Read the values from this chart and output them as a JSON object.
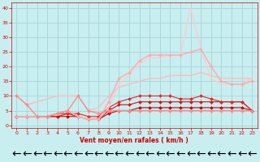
{
  "title": "",
  "xlabel": "Vent moyen/en rafales ( km/h )",
  "ylabel": "",
  "bg_color": "#c8eef0",
  "grid_color": "#aad8dc",
  "x_ticks": [
    0,
    1,
    2,
    3,
    4,
    5,
    6,
    7,
    8,
    9,
    10,
    11,
    12,
    13,
    14,
    15,
    16,
    17,
    18,
    19,
    20,
    21,
    22,
    23
  ],
  "ylim": [
    -1,
    42
  ],
  "xlim": [
    -0.5,
    23.5
  ],
  "yticks": [
    0,
    5,
    10,
    15,
    20,
    25,
    30,
    35,
    40
  ],
  "series": [
    {
      "x": [
        0,
        1,
        2,
        3,
        4,
        5,
        6,
        7,
        8,
        9,
        10,
        11,
        12,
        13,
        14,
        15,
        16,
        17,
        18,
        19,
        20,
        21,
        22,
        23
      ],
      "y": [
        3,
        3,
        3,
        3,
        3,
        3,
        3,
        2,
        2,
        4,
        5,
        5,
        6,
        6,
        6,
        6,
        6,
        6,
        6,
        6,
        6,
        6,
        6,
        5
      ],
      "color": "#cc0000",
      "lw": 0.8,
      "marker": "D",
      "ms": 2.0
    },
    {
      "x": [
        0,
        1,
        2,
        3,
        4,
        5,
        6,
        7,
        8,
        9,
        10,
        11,
        12,
        13,
        14,
        15,
        16,
        17,
        18,
        19,
        20,
        21,
        22,
        23
      ],
      "y": [
        3,
        3,
        3,
        3,
        3,
        4,
        3,
        2,
        2,
        5,
        7,
        7,
        8,
        8,
        8,
        8,
        8,
        8,
        8,
        8,
        8,
        8,
        8,
        5
      ],
      "color": "#dd1111",
      "lw": 0.8,
      "marker": "D",
      "ms": 2.0
    },
    {
      "x": [
        0,
        1,
        2,
        3,
        4,
        5,
        6,
        7,
        8,
        9,
        10,
        11,
        12,
        13,
        14,
        15,
        16,
        17,
        18,
        19,
        20,
        21,
        22,
        23
      ],
      "y": [
        3,
        3,
        3,
        3,
        4,
        4,
        4,
        3,
        3,
        6,
        8,
        9,
        10,
        10,
        10,
        10,
        9,
        9,
        10,
        9,
        8,
        8,
        8,
        5
      ],
      "color": "#ee2222",
      "lw": 0.8,
      "marker": "D",
      "ms": 2.0
    },
    {
      "x": [
        0,
        1,
        2,
        3,
        4,
        5,
        6,
        7,
        8,
        9,
        10,
        11,
        12,
        13,
        14,
        15,
        16,
        17,
        18,
        19,
        20,
        21,
        22,
        23
      ],
      "y": [
        10,
        7,
        8,
        9,
        10,
        10,
        10,
        5,
        6,
        10,
        13,
        14,
        15,
        16,
        16,
        17,
        17,
        17,
        18,
        17,
        16,
        16,
        16,
        16
      ],
      "color": "#ffbbbb",
      "lw": 1.0,
      "marker": null,
      "ms": 0
    },
    {
      "x": [
        0,
        1,
        2,
        3,
        4,
        5,
        6,
        7,
        8,
        9,
        10,
        11,
        12,
        13,
        14,
        15,
        16,
        17,
        18,
        19,
        20,
        21,
        22,
        23
      ],
      "y": [
        3,
        3,
        3,
        3,
        4,
        5,
        3,
        2,
        2,
        6,
        14,
        17,
        21,
        23,
        23,
        24,
        24,
        40,
        26,
        16,
        14,
        14,
        14,
        16
      ],
      "color": "#ffcccc",
      "lw": 1.0,
      "marker": null,
      "ms": 0
    },
    {
      "x": [
        0,
        1,
        2,
        3,
        4,
        5,
        6,
        7,
        8,
        9,
        10,
        11,
        12,
        13,
        14,
        15,
        16,
        17,
        18,
        19,
        20,
        21,
        22,
        23
      ],
      "y": [
        3,
        3,
        3,
        3,
        4,
        5,
        3,
        2,
        2,
        8,
        16,
        18,
        22,
        24,
        24,
        24,
        24,
        25,
        26,
        20,
        15,
        14,
        14,
        15
      ],
      "color": "#ffaaaa",
      "lw": 1.0,
      "marker": "D",
      "ms": 2.0
    },
    {
      "x": [
        0,
        1,
        2,
        3,
        4,
        5,
        6,
        7,
        8,
        9,
        10,
        11,
        12,
        13,
        14,
        15,
        16,
        17,
        18,
        19,
        20,
        21,
        22,
        23
      ],
      "y": [
        10,
        7,
        3,
        3,
        4,
        5,
        10,
        5,
        4,
        5,
        5,
        5,
        5,
        5,
        5,
        5,
        5,
        5,
        5,
        5,
        5,
        5,
        5,
        5
      ],
      "color": "#ff8888",
      "lw": 1.0,
      "marker": "D",
      "ms": 2.0
    }
  ]
}
